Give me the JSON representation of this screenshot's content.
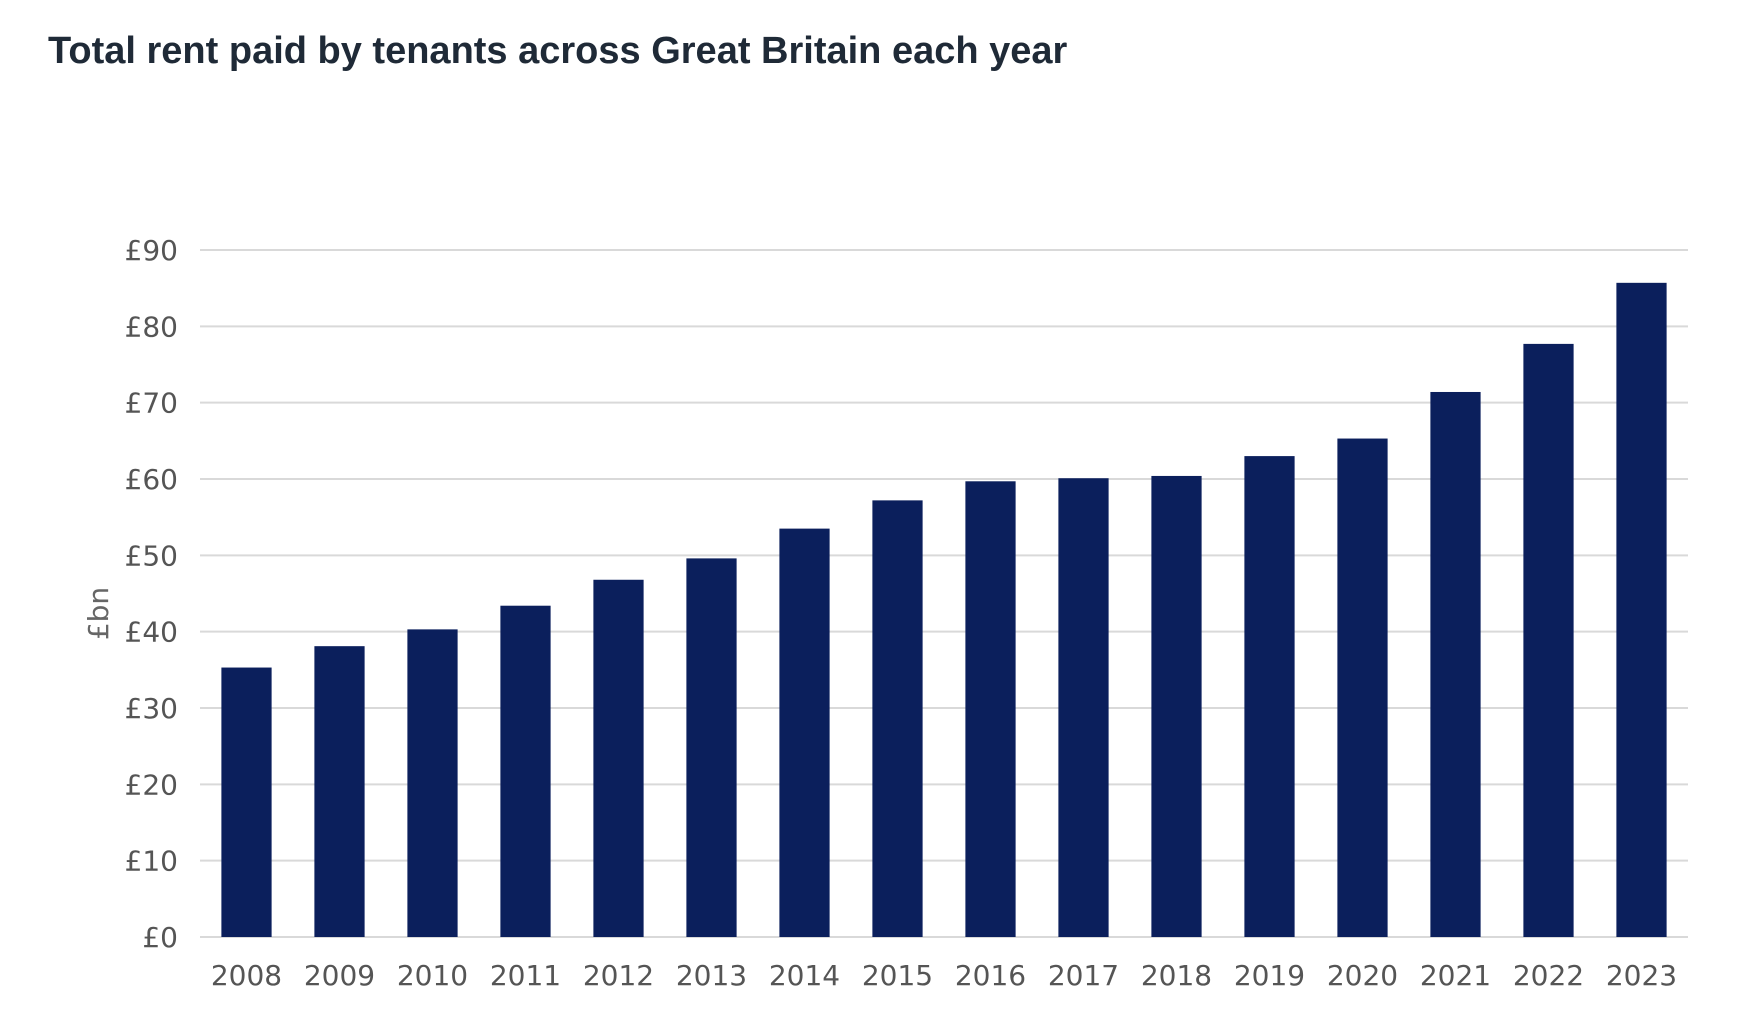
{
  "chart_data": {
    "type": "bar",
    "title": "Total rent paid by tenants across Great Britain each year",
    "xlabel": "",
    "ylabel": "£bn",
    "categories": [
      "2008",
      "2009",
      "2010",
      "2011",
      "2012",
      "2013",
      "2014",
      "2015",
      "2016",
      "2017",
      "2018",
      "2019",
      "2020",
      "2021",
      "2022",
      "2023"
    ],
    "values": [
      35.3,
      38.1,
      40.3,
      43.4,
      46.8,
      49.6,
      53.5,
      57.2,
      59.7,
      60.1,
      60.4,
      63.0,
      65.3,
      71.4,
      77.7,
      85.7
    ],
    "ylim": [
      0,
      90
    ],
    "yticks": [
      0,
      10,
      20,
      30,
      40,
      50,
      60,
      70,
      80,
      90
    ],
    "ytick_labels": [
      "£0",
      "£10",
      "£20",
      "£30",
      "£40",
      "£50",
      "£60",
      "£70",
      "£80",
      "£90"
    ],
    "grid": true,
    "legend": "none",
    "bar_color": "#0b1f5c"
  }
}
